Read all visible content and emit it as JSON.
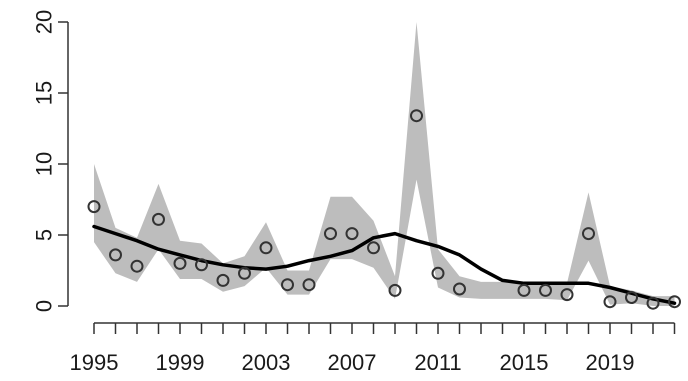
{
  "chart_data": {
    "type": "line",
    "x_ticks": [
      "1995",
      "1999",
      "2003",
      "2007",
      "2011",
      "2015",
      "2019"
    ],
    "y_ticks": [
      "0",
      "5",
      "10",
      "15",
      "20"
    ],
    "xlim": [
      1994,
      2023
    ],
    "ylim": [
      0,
      20
    ],
    "grid": false,
    "series": [
      {
        "kind": "points",
        "x": [
          1995,
          1996,
          1997,
          1998,
          1999,
          2000,
          2001,
          2002,
          2003,
          2004,
          2005,
          2006,
          2007,
          2008,
          2009,
          2010,
          2011,
          2012,
          2015,
          2016,
          2017,
          2018,
          2019,
          2020,
          2021,
          2022
        ],
        "y": [
          7.0,
          3.6,
          2.8,
          6.1,
          3.0,
          2.9,
          1.8,
          2.3,
          4.1,
          1.5,
          1.5,
          5.1,
          5.1,
          4.1,
          1.1,
          13.4,
          2.3,
          1.2,
          1.1,
          1.1,
          0.8,
          5.1,
          0.3,
          0.6,
          0.2,
          0.3
        ]
      },
      {
        "kind": "smooth",
        "x": [
          1995,
          1996,
          1997,
          1998,
          1999,
          2000,
          2001,
          2002,
          2003,
          2004,
          2005,
          2006,
          2007,
          2008,
          2009,
          2010,
          2011,
          2012,
          2013,
          2014,
          2015,
          2016,
          2017,
          2018,
          2019,
          2020,
          2021,
          2022
        ],
        "y": [
          5.6,
          5.1,
          4.6,
          4.0,
          3.6,
          3.2,
          2.9,
          2.7,
          2.6,
          2.8,
          3.2,
          3.5,
          3.9,
          4.8,
          5.1,
          4.6,
          4.2,
          3.6,
          2.6,
          1.8,
          1.6,
          1.6,
          1.6,
          1.6,
          1.3,
          0.9,
          0.5,
          0.2
        ]
      },
      {
        "kind": "band",
        "x": [
          1995,
          1996,
          1997,
          1998,
          1999,
          2000,
          2001,
          2002,
          2003,
          2004,
          2005,
          2006,
          2007,
          2008,
          2009,
          2010,
          2011,
          2012,
          2013,
          2014,
          2015,
          2016,
          2017,
          2018,
          2019,
          2020,
          2021,
          2022
        ],
        "upper": [
          10.0,
          5.5,
          4.8,
          8.6,
          4.6,
          4.4,
          3.0,
          3.5,
          5.9,
          2.5,
          2.5,
          7.7,
          7.7,
          6.0,
          2.1,
          20.0,
          4.0,
          2.1,
          1.7,
          1.7,
          1.7,
          1.7,
          1.6,
          8.0,
          1.4,
          1.1,
          0.7,
          0.7
        ],
        "lower": [
          4.5,
          2.3,
          1.7,
          4.0,
          1.9,
          1.9,
          1.0,
          1.4,
          2.7,
          0.8,
          0.8,
          3.3,
          3.3,
          2.7,
          0.5,
          8.9,
          1.3,
          0.6,
          0.5,
          0.5,
          0.5,
          0.5,
          0.4,
          3.2,
          0.1,
          0.2,
          0.0,
          0.0
        ]
      }
    ],
    "colors": {
      "band": "#bdbdbd",
      "line": "#000000",
      "point": "#333333",
      "axis": "#333333"
    }
  }
}
